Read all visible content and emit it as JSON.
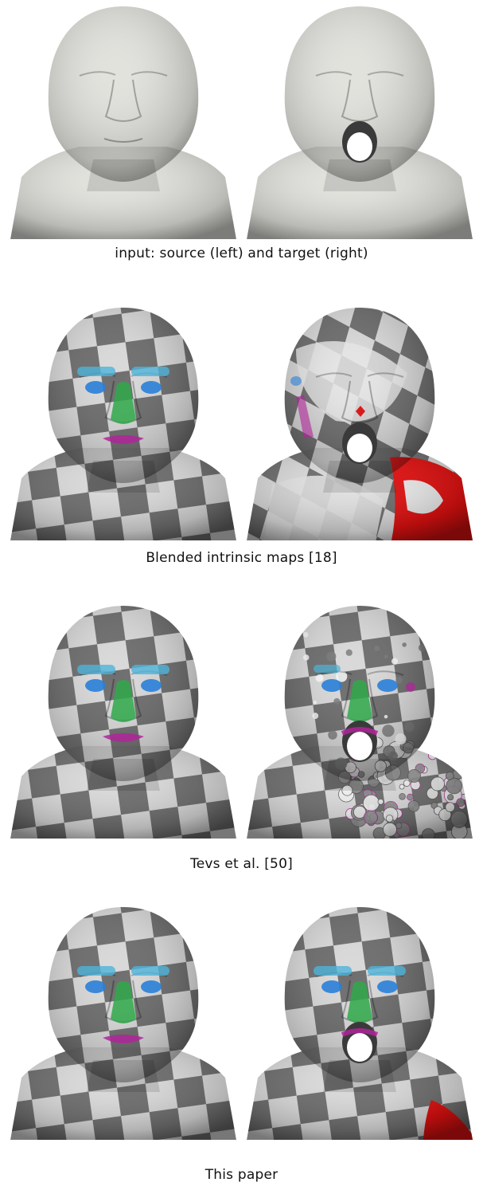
{
  "figure": {
    "rows": [
      {
        "caption": "input: source (left) and target (right)",
        "left": {
          "texture": "plain",
          "expression": "neutral"
        },
        "right": {
          "texture": "plain",
          "expression": "open-mouth"
        }
      },
      {
        "caption": "Blended intrinsic maps [18]",
        "left": {
          "texture": "checker",
          "expression": "neutral",
          "features": true,
          "error": false
        },
        "right": {
          "texture": "checker-distorted",
          "expression": "open-mouth",
          "features": "sparse",
          "error": "shoulder"
        }
      },
      {
        "caption": "Tevs et al. [50]",
        "left": {
          "texture": "checker",
          "expression": "neutral",
          "features": true,
          "error": false
        },
        "right": {
          "texture": "checker-noisy",
          "expression": "open-mouth",
          "features": "scattered",
          "error": false
        }
      },
      {
        "caption": "This paper",
        "left": {
          "texture": "checker",
          "expression": "neutral",
          "features": true,
          "error": false
        },
        "right": {
          "texture": "checker",
          "expression": "open-mouth",
          "features": true,
          "error": "shoulder-tip"
        }
      }
    ],
    "colors": {
      "background": "#ffffff",
      "surface": "#e2e2dd",
      "checker_light": "#d9d9d9",
      "checker_dark": "#6e6e6e",
      "eyebrow": "#4fb3d9",
      "eye": "#2a7fd8",
      "nose": "#2fa84a",
      "mouth": "#b0249a",
      "error": "#e01010"
    }
  }
}
